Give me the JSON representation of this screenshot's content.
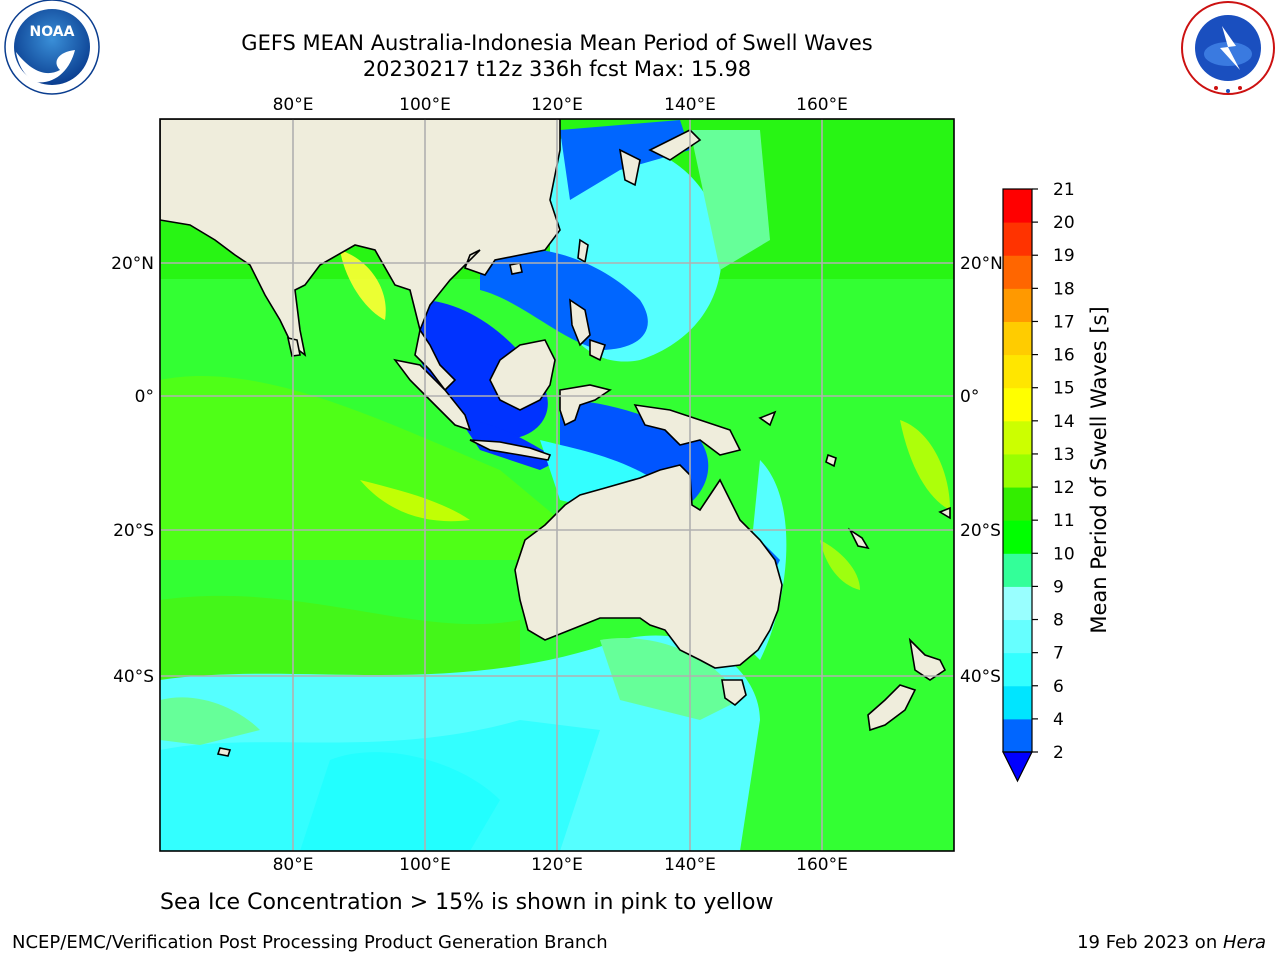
{
  "header": {
    "title_line1": "GEFS MEAN Australia-Indonesia Mean Period of Swell Waves",
    "title_line2": "20230217 t12z 336h fcst   Max: 15.98"
  },
  "logos": {
    "noaa_text": "NOAA",
    "nws_text": "NATIONAL WEATHER SERVICE"
  },
  "map": {
    "lon_labels": [
      "80°E",
      "100°E",
      "120°E",
      "140°E",
      "160°E"
    ],
    "lat_labels": [
      "20°N",
      "0°",
      "20°S",
      "40°S"
    ],
    "colors": {
      "land": "#efeddc",
      "grid": "#b0b0b0",
      "coast": "#000000"
    }
  },
  "colorbar": {
    "label": "Mean Period of Swell Waves [s]",
    "ticks": [
      "2",
      "4",
      "6",
      "7",
      "8",
      "9",
      "10",
      "11",
      "12",
      "13",
      "14",
      "15",
      "16",
      "17",
      "18",
      "19",
      "20",
      "21"
    ],
    "colors": [
      "#0066ff",
      "#00e5ff",
      "#33ffff",
      "#66ffff",
      "#99ffff",
      "#33ff99",
      "#00ff00",
      "#33ee00",
      "#99ff00",
      "#ccff00",
      "#ffff00",
      "#ffe600",
      "#ffcc00",
      "#ff9900",
      "#ff6600",
      "#ff3300",
      "#ff0000"
    ],
    "under_color": "#0000ff"
  },
  "footer": {
    "note": "Sea Ice Concentration > 15% is shown in pink to yellow",
    "credit_left": "NCEP/EMC/Verification Post Processing Product Generation Branch",
    "credit_right_date": "19 Feb 2023 on ",
    "credit_right_host": "Hera"
  }
}
